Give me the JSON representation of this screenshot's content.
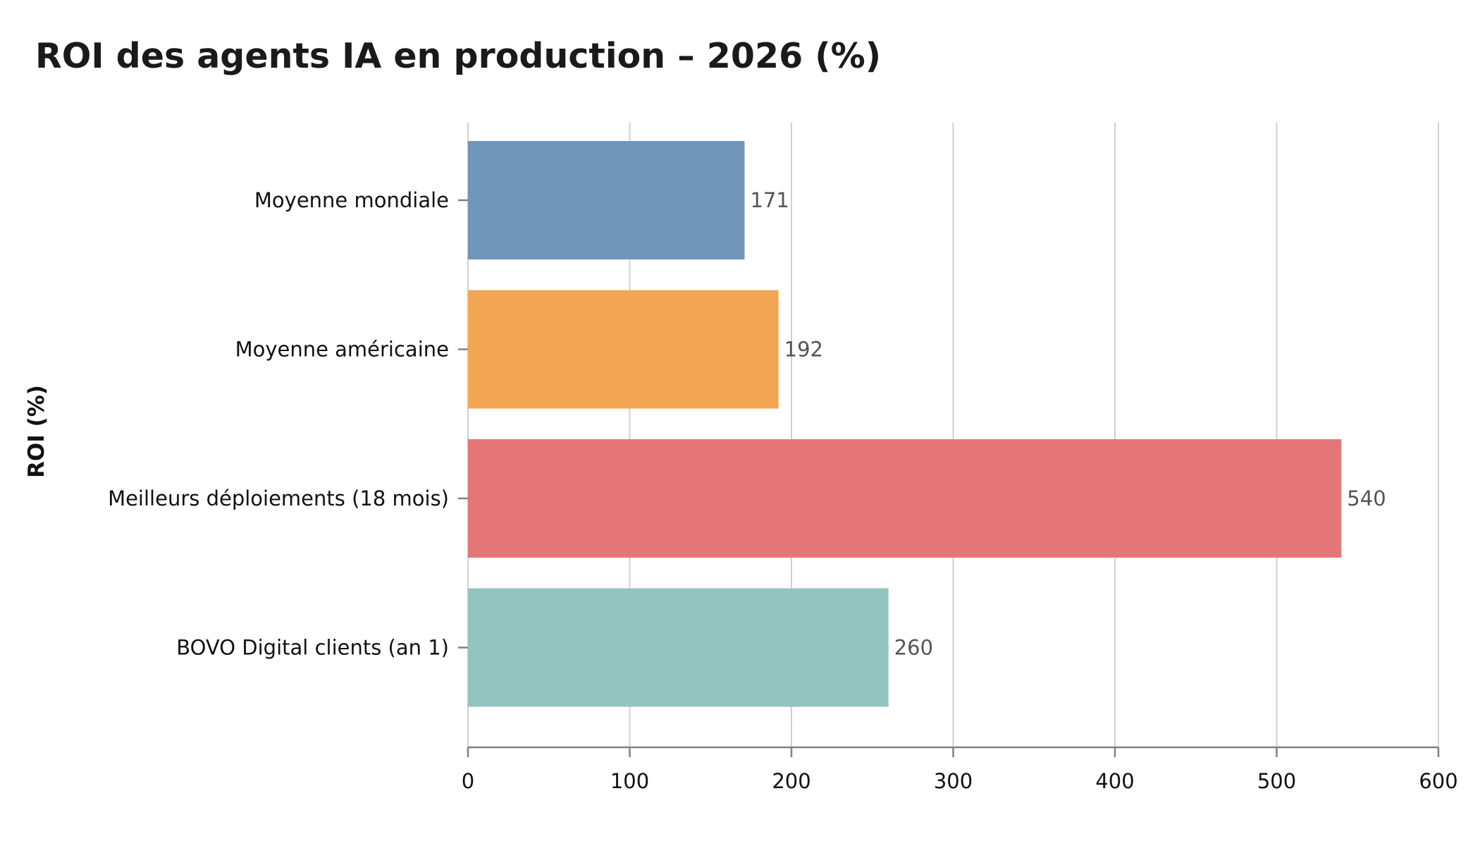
{
  "chart_data": {
    "type": "bar",
    "orientation": "horizontal",
    "title": "ROI des agents IA en production – 2026 (%)",
    "xlabel": "",
    "ylabel": "ROI (%)",
    "categories": [
      "Moyenne mondiale",
      "Moyenne américaine",
      "Meilleurs déploiements (18 mois)",
      "BOVO Digital clients (an 1)"
    ],
    "values": [
      171,
      192,
      540,
      260
    ],
    "value_labels": [
      "171",
      "192",
      "540",
      "260"
    ],
    "colors": [
      "#7196ba",
      "#f2a553",
      "#e57677",
      "#93c4c0"
    ],
    "xlim": [
      0,
      600
    ],
    "xticks": [
      0,
      100,
      200,
      300,
      400,
      500,
      600
    ],
    "xtick_labels": [
      "0",
      "100",
      "200",
      "300",
      "400",
      "500",
      "600"
    ],
    "grid": "vertical",
    "legend": "none"
  }
}
